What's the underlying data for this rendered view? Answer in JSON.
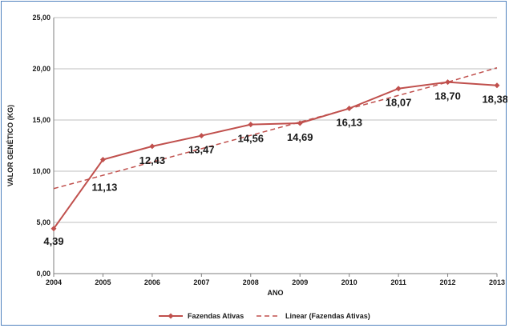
{
  "chart_data": {
    "type": "line",
    "title": "",
    "xlabel": "ANO",
    "ylabel": "VALOR GENÉTICO (KG)",
    "categories": [
      "2004",
      "2005",
      "2006",
      "2007",
      "2008",
      "2009",
      "2010",
      "2011",
      "2012",
      "2013"
    ],
    "y_ticks": [
      "0,00",
      "5,00",
      "10,00",
      "15,00",
      "20,00",
      "25,00"
    ],
    "ylim": [
      0,
      25
    ],
    "grid": true,
    "legend_position": "bottom",
    "series": [
      {
        "name": "Fazendas Ativas",
        "values": [
          4.39,
          11.13,
          12.43,
          13.47,
          14.56,
          14.69,
          16.13,
          18.07,
          18.7,
          18.38
        ],
        "labels": [
          "4,39",
          "11,13",
          "12,43",
          "13,47",
          "14,56",
          "14,69",
          "16,13",
          "18,07",
          "18,70",
          "18,38"
        ],
        "color": "#c0504d",
        "style": "solid",
        "marker": "diamond"
      },
      {
        "name": "Linear (Fazendas Ativas)",
        "values": [
          8.3,
          9.6,
          10.9,
          12.2,
          13.5,
          14.8,
          16.1,
          17.4,
          18.7,
          20.1
        ],
        "color": "#c0504d",
        "style": "dashed",
        "marker": "none"
      }
    ]
  }
}
